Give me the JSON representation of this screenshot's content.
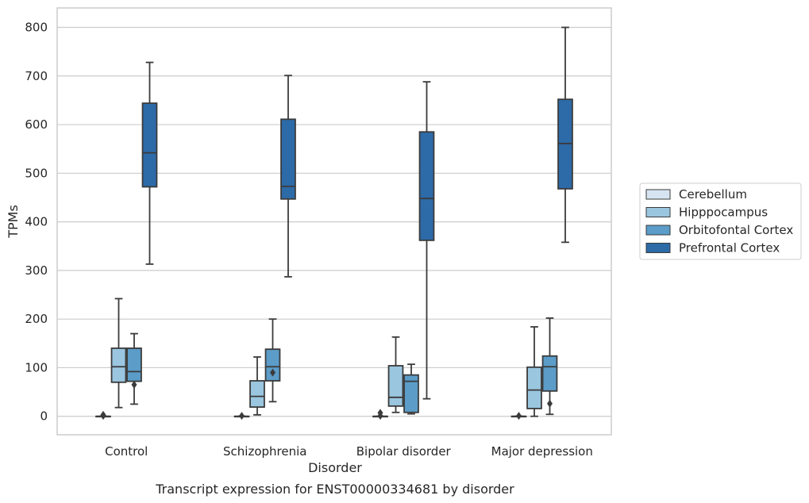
{
  "caption": "Transcript expression for ENST00000334681 by disorder",
  "chart_data": {
    "type": "box",
    "title": "",
    "xlabel": "Disorder",
    "ylabel": "TPMs",
    "ylim": [
      -38,
      840
    ],
    "yticks": [
      0,
      100,
      200,
      300,
      400,
      500,
      600,
      700,
      800
    ],
    "grid": true,
    "legend_position": "right",
    "categories": [
      "Control",
      "Schizophrenia",
      "Bipolar disorder",
      "Major depression"
    ],
    "series": [
      {
        "name": "Cerebellum",
        "color": "#d6e4f1",
        "boxes": [
          {
            "min": 0,
            "q1": 0,
            "median": 0,
            "q3": 0,
            "max": 0,
            "outliers": [
              1,
              3
            ]
          },
          {
            "min": 0,
            "q1": 0,
            "median": 0,
            "q3": 0,
            "max": 0,
            "outliers": [
              1
            ]
          },
          {
            "min": 0,
            "q1": 0,
            "median": 0,
            "q3": 0,
            "max": 0,
            "outliers": [
              1,
              7
            ]
          },
          {
            "min": 0,
            "q1": 0,
            "median": 0,
            "q3": 0,
            "max": 0,
            "outliers": [
              1
            ]
          }
        ]
      },
      {
        "name": "Hipppocampus",
        "color": "#9ac6e0",
        "boxes": [
          {
            "min": 18,
            "q1": 70,
            "median": 102,
            "q3": 140,
            "max": 242,
            "outliers": []
          },
          {
            "min": 3,
            "q1": 19,
            "median": 41,
            "q3": 73,
            "max": 122,
            "outliers": []
          },
          {
            "min": 8,
            "q1": 21,
            "median": 39,
            "q3": 104,
            "max": 163,
            "outliers": []
          },
          {
            "min": 0,
            "q1": 16,
            "median": 54,
            "q3": 101,
            "max": 184,
            "outliers": []
          }
        ]
      },
      {
        "name": "Orbitofontal Cortex",
        "color": "#5b9cc8",
        "boxes": [
          {
            "min": 25,
            "q1": 72,
            "median": 92,
            "q3": 140,
            "max": 170,
            "outliers": [
              65
            ]
          },
          {
            "min": 30,
            "q1": 73,
            "median": 102,
            "q3": 138,
            "max": 200,
            "outliers": [
              90
            ]
          },
          {
            "min": 5,
            "q1": 8,
            "median": 72,
            "q3": 85,
            "max": 107,
            "outliers": []
          },
          {
            "min": 4,
            "q1": 52,
            "median": 102,
            "q3": 124,
            "max": 202,
            "outliers": [
              26
            ]
          }
        ]
      },
      {
        "name": "Prefrontal Cortex",
        "color": "#2d6aa8",
        "boxes": [
          {
            "min": 313,
            "q1": 472,
            "median": 542,
            "q3": 644,
            "max": 728,
            "outliers": []
          },
          {
            "min": 287,
            "q1": 447,
            "median": 473,
            "q3": 611,
            "max": 701,
            "outliers": []
          },
          {
            "min": 36,
            "q1": 362,
            "median": 448,
            "q3": 585,
            "max": 688,
            "outliers": []
          },
          {
            "min": 358,
            "q1": 468,
            "median": 561,
            "q3": 652,
            "max": 800,
            "outliers": []
          }
        ]
      }
    ]
  }
}
